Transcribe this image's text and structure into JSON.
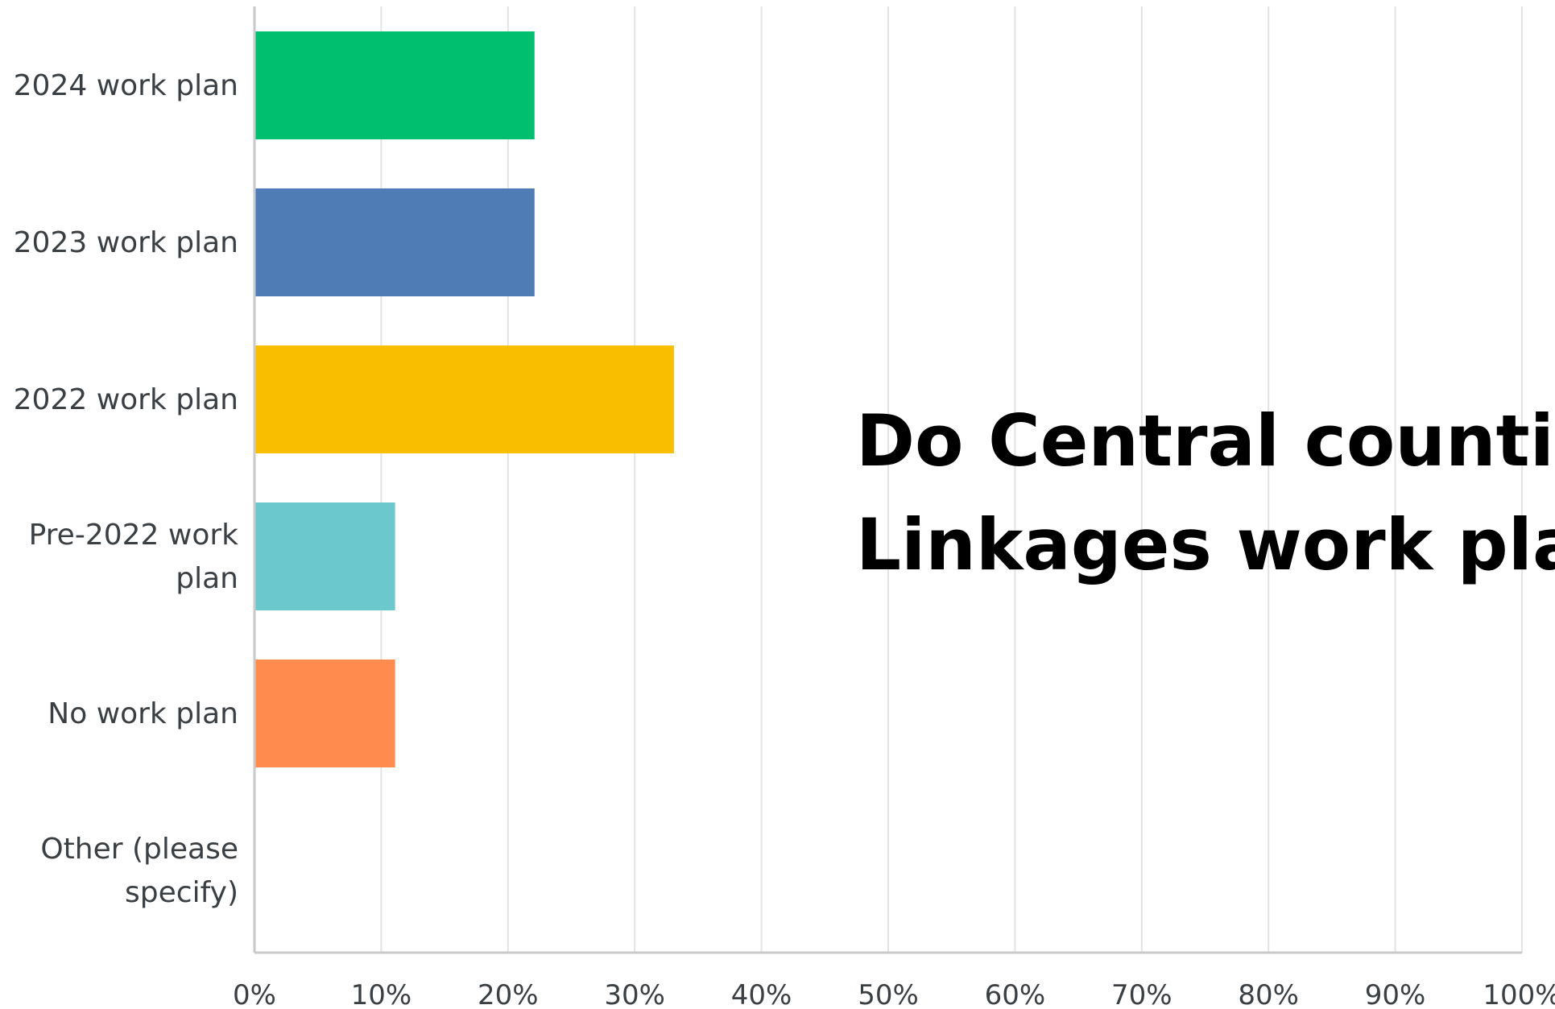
{
  "chart_data": {
    "type": "bar",
    "orientation": "horizontal",
    "categories": [
      [
        "2024 work plan"
      ],
      [
        "2023 work plan"
      ],
      [
        "2022 work plan"
      ],
      [
        "Pre-2022 work",
        "plan"
      ],
      [
        "No work plan"
      ],
      [
        "Other (please",
        "specify)"
      ]
    ],
    "values": [
      22,
      22,
      33,
      11,
      11,
      0
    ],
    "colors": [
      "#00bf6f",
      "#507cb6",
      "#f9be00",
      "#6bc8cd",
      "#ff8b4f",
      "#ffffff"
    ],
    "x_ticks": [
      "0%",
      "10%",
      "20%",
      "30%",
      "40%",
      "50%",
      "60%",
      "70%",
      "80%",
      "90%",
      "100%"
    ],
    "xlim": [
      0,
      100
    ],
    "grid": true,
    "legend": "none"
  },
  "overlay": {
    "lines": [
      "Do Central counties",
      "Linkages work plans"
    ]
  }
}
